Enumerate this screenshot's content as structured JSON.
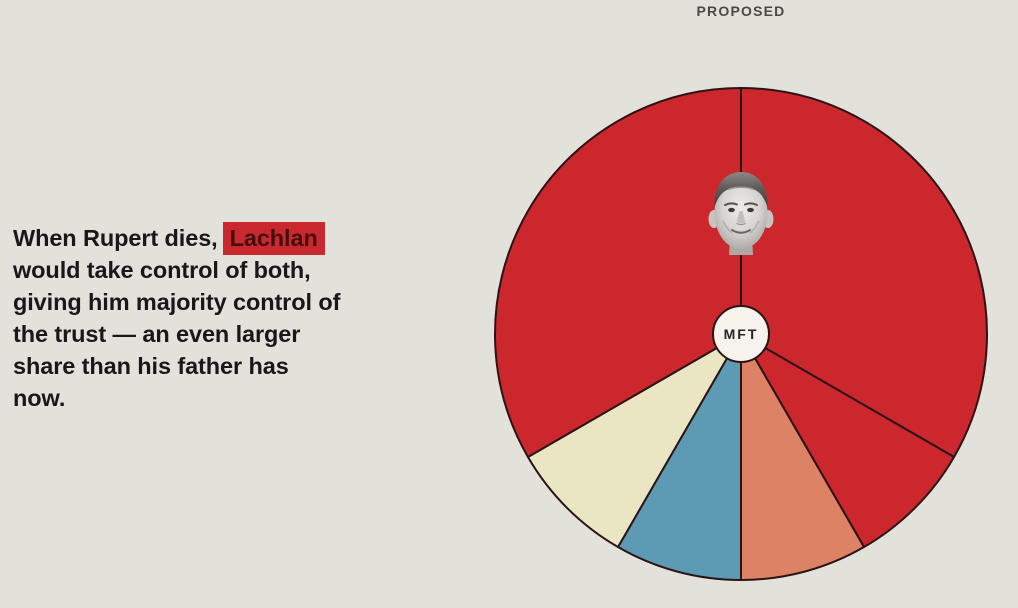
{
  "colors": {
    "bg": "#e2e1da",
    "text": "#19171a",
    "title": "#4b4946",
    "highlight_bg": "#c9282e",
    "highlight_text": "#43100f",
    "divider": "#2b1316",
    "center_fill": "#f5f3ec",
    "red": "#cb272d",
    "salmon": "#dd8264",
    "blue": "#5d9bb5",
    "cream": "#eae6c3"
  },
  "header": {
    "label": "PROPOSED"
  },
  "annotation": {
    "line1_prefix": "When Rupert dies,",
    "highlight": "Lachlan",
    "lines": [
      "would take control of both,",
      "giving him majority control of",
      "the trust — an even larger",
      "share than his father has",
      "now."
    ]
  },
  "chart_data": {
    "type": "pie",
    "title": "PROPOSED",
    "center_label": "MFT",
    "legend": "none",
    "start_angle_deg_from_north": 0,
    "clockwise": true,
    "face_overlay": "black-and-white photo of Lachlan Murdoch centered in the top red region",
    "slices": [
      {
        "id": "red-right-large",
        "color": "#cb272d",
        "degrees": 120,
        "percent": 33.3
      },
      {
        "id": "red-lower-right-small",
        "color": "#cb272d",
        "degrees": 30,
        "percent": 8.3
      },
      {
        "id": "salmon-lower-right",
        "color": "#dd8264",
        "degrees": 30,
        "percent": 8.3
      },
      {
        "id": "blue-lower-left",
        "color": "#5d9bb5",
        "degrees": 30,
        "percent": 8.3
      },
      {
        "id": "cream-lower-left",
        "color": "#eae6c3",
        "degrees": 30,
        "percent": 8.3
      },
      {
        "id": "red-left-large",
        "color": "#cb272d",
        "degrees": 120,
        "percent": 33.3
      }
    ]
  }
}
